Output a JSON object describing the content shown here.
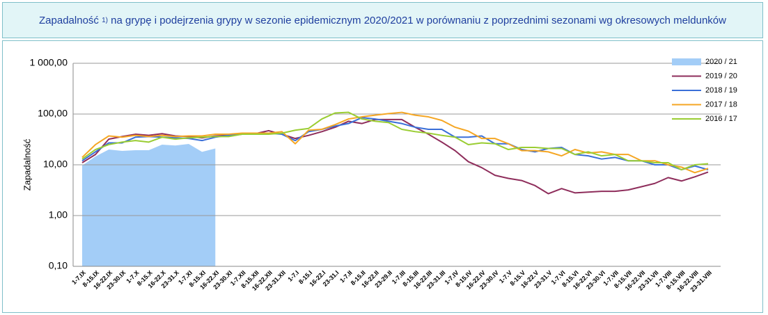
{
  "chart_data": {
    "type": "line",
    "title_parts": [
      "Zapadalność",
      "1)",
      "na grypę i podejrzenia grypy w sezonie epidemicznym 2020/2021 w porównaniu z poprzednimi sezonami wg okresowych meldunków"
    ],
    "y_label": "Zapadalność",
    "yscale": "log",
    "grid": true,
    "legend": "top-right",
    "ylim": [
      0.1,
      1000
    ],
    "yticks": [
      {
        "value": 0.1,
        "label": "0,10"
      },
      {
        "value": 1,
        "label": "1,00"
      },
      {
        "value": 10,
        "label": "10,00"
      },
      {
        "value": 100,
        "label": "100,00"
      },
      {
        "value": 1000,
        "label": "1 000,00"
      }
    ],
    "categories": [
      "1-7.IX",
      "8-15.IX",
      "16-22.IX",
      "23-30.IX",
      "1-7.X",
      "8-15.X",
      "16-22.X",
      "23-31.X",
      "1-7.XI",
      "8-15.XI",
      "16-22.XI",
      "23-30.XI",
      "1-7.XII",
      "8-15.XII",
      "16-22.XII",
      "23-31.XII",
      "1-7.I",
      "8-15.I",
      "16-22.I",
      "23-31.I",
      "1-7.II",
      "8-15.II",
      "16-22.II",
      "23-29.II",
      "1-7.III",
      "8-15.III",
      "16-22.III",
      "23-31.III",
      "1-7.IV",
      "8-15.IV",
      "16-22.IV",
      "23-30.IV",
      "1-7.V",
      "8-15.V",
      "16-22.V",
      "23-31.V",
      "1-7.VI",
      "8-15.VI",
      "16-22.VI",
      "23-30.VI",
      "1-7.VII",
      "8-15.VII",
      "16-22.VII",
      "23-31.VII",
      "1-7.VIII",
      "8-15.VIII",
      "16-22.VIII",
      "23-31.VIII"
    ],
    "series": [
      {
        "name": "2020 / 21",
        "style": "area",
        "color": "#a3cdf7",
        "values": [
          9.7,
          14.6,
          20,
          18.8,
          19.4,
          19.4,
          25,
          24,
          25.8,
          18,
          21,
          null,
          null,
          null,
          null,
          null,
          null,
          null,
          null,
          null,
          null,
          null,
          null,
          null,
          null,
          null,
          null,
          null,
          null,
          null,
          null,
          null,
          null,
          null,
          null,
          null,
          null,
          null,
          null,
          null,
          null,
          null,
          null,
          null,
          null,
          null,
          null,
          null
        ]
      },
      {
        "name": "2019 / 20",
        "style": "line",
        "color": "#8e2d5b",
        "values": [
          11,
          16,
          32,
          36,
          40,
          38,
          41,
          37,
          36,
          34,
          37,
          38,
          40,
          41,
          47,
          40,
          33,
          38,
          45,
          55,
          72,
          65,
          78,
          78,
          78,
          55,
          40,
          28,
          19,
          11.5,
          8.8,
          6.2,
          5.4,
          4.9,
          3.9,
          2.7,
          3.4,
          2.8,
          2.9,
          3.0,
          3.0,
          3.2,
          3.7,
          4.3,
          5.6,
          4.8,
          5.8,
          7.2
        ]
      },
      {
        "name": "2018 / 19",
        "style": "line",
        "color": "#3a6fd8",
        "values": [
          12,
          18,
          27,
          27,
          35,
          36,
          35,
          34,
          33,
          30,
          35,
          38,
          40,
          40,
          42,
          40,
          30,
          45,
          50,
          58,
          65,
          85,
          80,
          72,
          65,
          55,
          50,
          50,
          35,
          35,
          37,
          26,
          26,
          20,
          18,
          21,
          22,
          16,
          15,
          13,
          14,
          12,
          12,
          10,
          10,
          8,
          9.5,
          8
        ]
      },
      {
        "name": "2017 / 18",
        "style": "line",
        "color": "#f5a623",
        "values": [
          14,
          25,
          37,
          35,
          38,
          36,
          38,
          36,
          37,
          37,
          40,
          40,
          42,
          42,
          42,
          45,
          26,
          48,
          50,
          62,
          80,
          88,
          95,
          102,
          108,
          95,
          88,
          75,
          55,
          46,
          33,
          33,
          26,
          19,
          19,
          18,
          15,
          20,
          17,
          18,
          16,
          16,
          12,
          12,
          10,
          9,
          7,
          8.5
        ]
      },
      {
        "name": "2016 / 17",
        "style": "line",
        "color": "#9acd32",
        "values": [
          13,
          20,
          25,
          28,
          30,
          28,
          35,
          32,
          34,
          35,
          36,
          36,
          40,
          40,
          40,
          42,
          48,
          52,
          80,
          105,
          108,
          80,
          72,
          68,
          50,
          45,
          42,
          38,
          35,
          25,
          27,
          26,
          20,
          22,
          22,
          21,
          21,
          16,
          18,
          15,
          16,
          12,
          12,
          11,
          11,
          8,
          10,
          10.5
        ]
      }
    ]
  }
}
